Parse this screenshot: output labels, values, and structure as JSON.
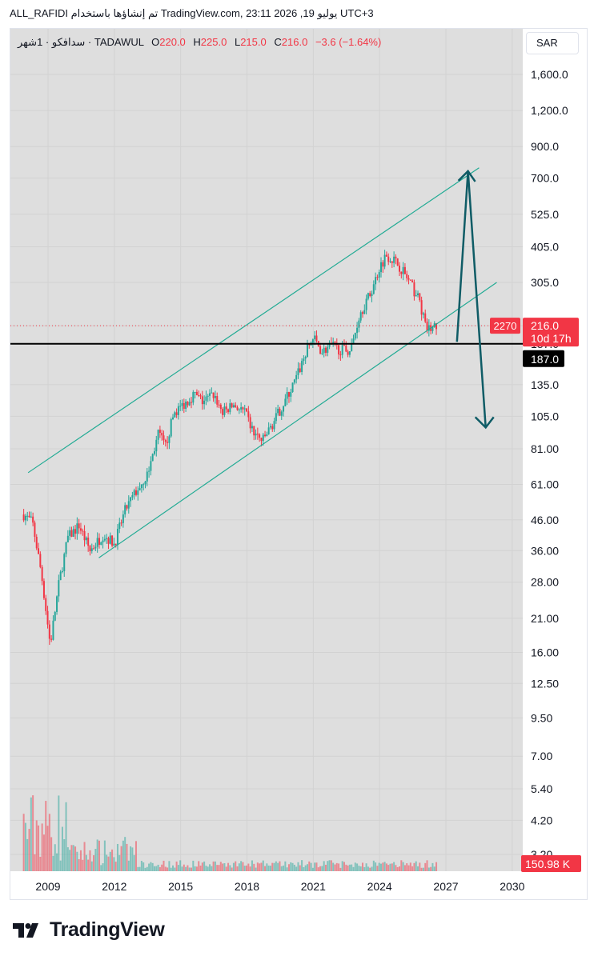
{
  "header": {
    "attribution": "ALL_RAFIDI تم إنشاؤها باستخدام TradingView.com, 23:11 2026 ,19 يوليو UTC+3"
  },
  "legend": {
    "symbol": "سدافكو · 1شهر · TADAWUL",
    "open_label": "O",
    "open": "220.0",
    "high_label": "H",
    "high": "225.0",
    "low_label": "L",
    "low": "215.0",
    "close_label": "C",
    "close": "216.0",
    "change": "−3.6 (−1.64%)"
  },
  "currency_button": "SAR",
  "price_badges": {
    "last_price": "216.0",
    "countdown": "10d 17h",
    "left_tag": "2270",
    "line_price": "187.0",
    "volume": "150.98 K"
  },
  "colors": {
    "up": "#26a69a",
    "down": "#f23645",
    "channel": "#22ab94",
    "arrow": "#0f5c66",
    "level_line": "#000000",
    "plot_bg": "#dedede"
  },
  "chart_data": {
    "type": "candlestick",
    "interval": "1 month",
    "exchange": "TADAWUL",
    "currency": "SAR",
    "y_scale": "log",
    "ylim": [
      2.8,
      2300
    ],
    "y_ticks": [
      "1,600.0",
      "1,200.0",
      "900.0",
      "700.0",
      "525.0",
      "405.0",
      "305.0",
      "216.0",
      "187.0",
      "135.0",
      "105.0",
      "81.00",
      "61.00",
      "46.00",
      "36.00",
      "28.00",
      "21.00",
      "16.00",
      "12.50",
      "9.50",
      "7.00",
      "5.40",
      "4.20",
      "3.20"
    ],
    "y_tick_values": [
      1600,
      1200,
      900,
      700,
      525,
      405,
      305,
      216,
      187,
      135,
      105,
      81,
      61,
      46,
      36,
      28,
      21,
      16,
      12.5,
      9.5,
      7,
      5.4,
      4.2,
      3.2
    ],
    "x_ticks": [
      "2009",
      "2012",
      "2015",
      "2018",
      "2021",
      "2024",
      "2027",
      "2030"
    ],
    "x_tick_values": [
      2009,
      2012,
      2015,
      2018,
      2021,
      2024,
      2027,
      2030
    ],
    "price_path": [
      [
        2007.9,
        48
      ],
      [
        2008.3,
        45
      ],
      [
        2008.7,
        30
      ],
      [
        2009.1,
        17
      ],
      [
        2009.5,
        28
      ],
      [
        2009.9,
        40
      ],
      [
        2010.4,
        44
      ],
      [
        2010.9,
        36
      ],
      [
        2011.5,
        41
      ],
      [
        2012.0,
        38
      ],
      [
        2012.5,
        50
      ],
      [
        2013.0,
        58
      ],
      [
        2013.5,
        66
      ],
      [
        2014.0,
        92
      ],
      [
        2014.3,
        82
      ],
      [
        2014.7,
        108
      ],
      [
        2015.1,
        115
      ],
      [
        2015.6,
        125
      ],
      [
        2016.0,
        118
      ],
      [
        2016.5,
        125
      ],
      [
        2016.9,
        108
      ],
      [
        2017.4,
        115
      ],
      [
        2017.9,
        108
      ],
      [
        2018.3,
        92
      ],
      [
        2018.7,
        86
      ],
      [
        2019.2,
        100
      ],
      [
        2019.7,
        118
      ],
      [
        2020.2,
        140
      ],
      [
        2020.7,
        178
      ],
      [
        2021.0,
        196
      ],
      [
        2021.4,
        176
      ],
      [
        2021.8,
        184
      ],
      [
        2022.3,
        178
      ],
      [
        2022.7,
        178
      ],
      [
        2023.1,
        238
      ],
      [
        2023.6,
        280
      ],
      [
        2024.0,
        345
      ],
      [
        2024.3,
        380
      ],
      [
        2024.6,
        368
      ],
      [
        2025.0,
        340
      ],
      [
        2025.4,
        300
      ],
      [
        2025.8,
        265
      ],
      [
        2026.1,
        210
      ],
      [
        2026.4,
        212
      ],
      [
        2026.6,
        216
      ]
    ],
    "channel_upper": [
      [
        2008.1,
        67
      ],
      [
        2028.5,
        760
      ]
    ],
    "channel_lower": [
      [
        2011.3,
        34
      ],
      [
        2029.3,
        305
      ]
    ],
    "support_line": 187,
    "projection_arrow": [
      [
        2027.5,
        190
      ],
      [
        2028.0,
        740
      ],
      [
        2028.8,
        96
      ]
    ],
    "last_price": 216.0,
    "last_volume": "150.98 K"
  }
}
